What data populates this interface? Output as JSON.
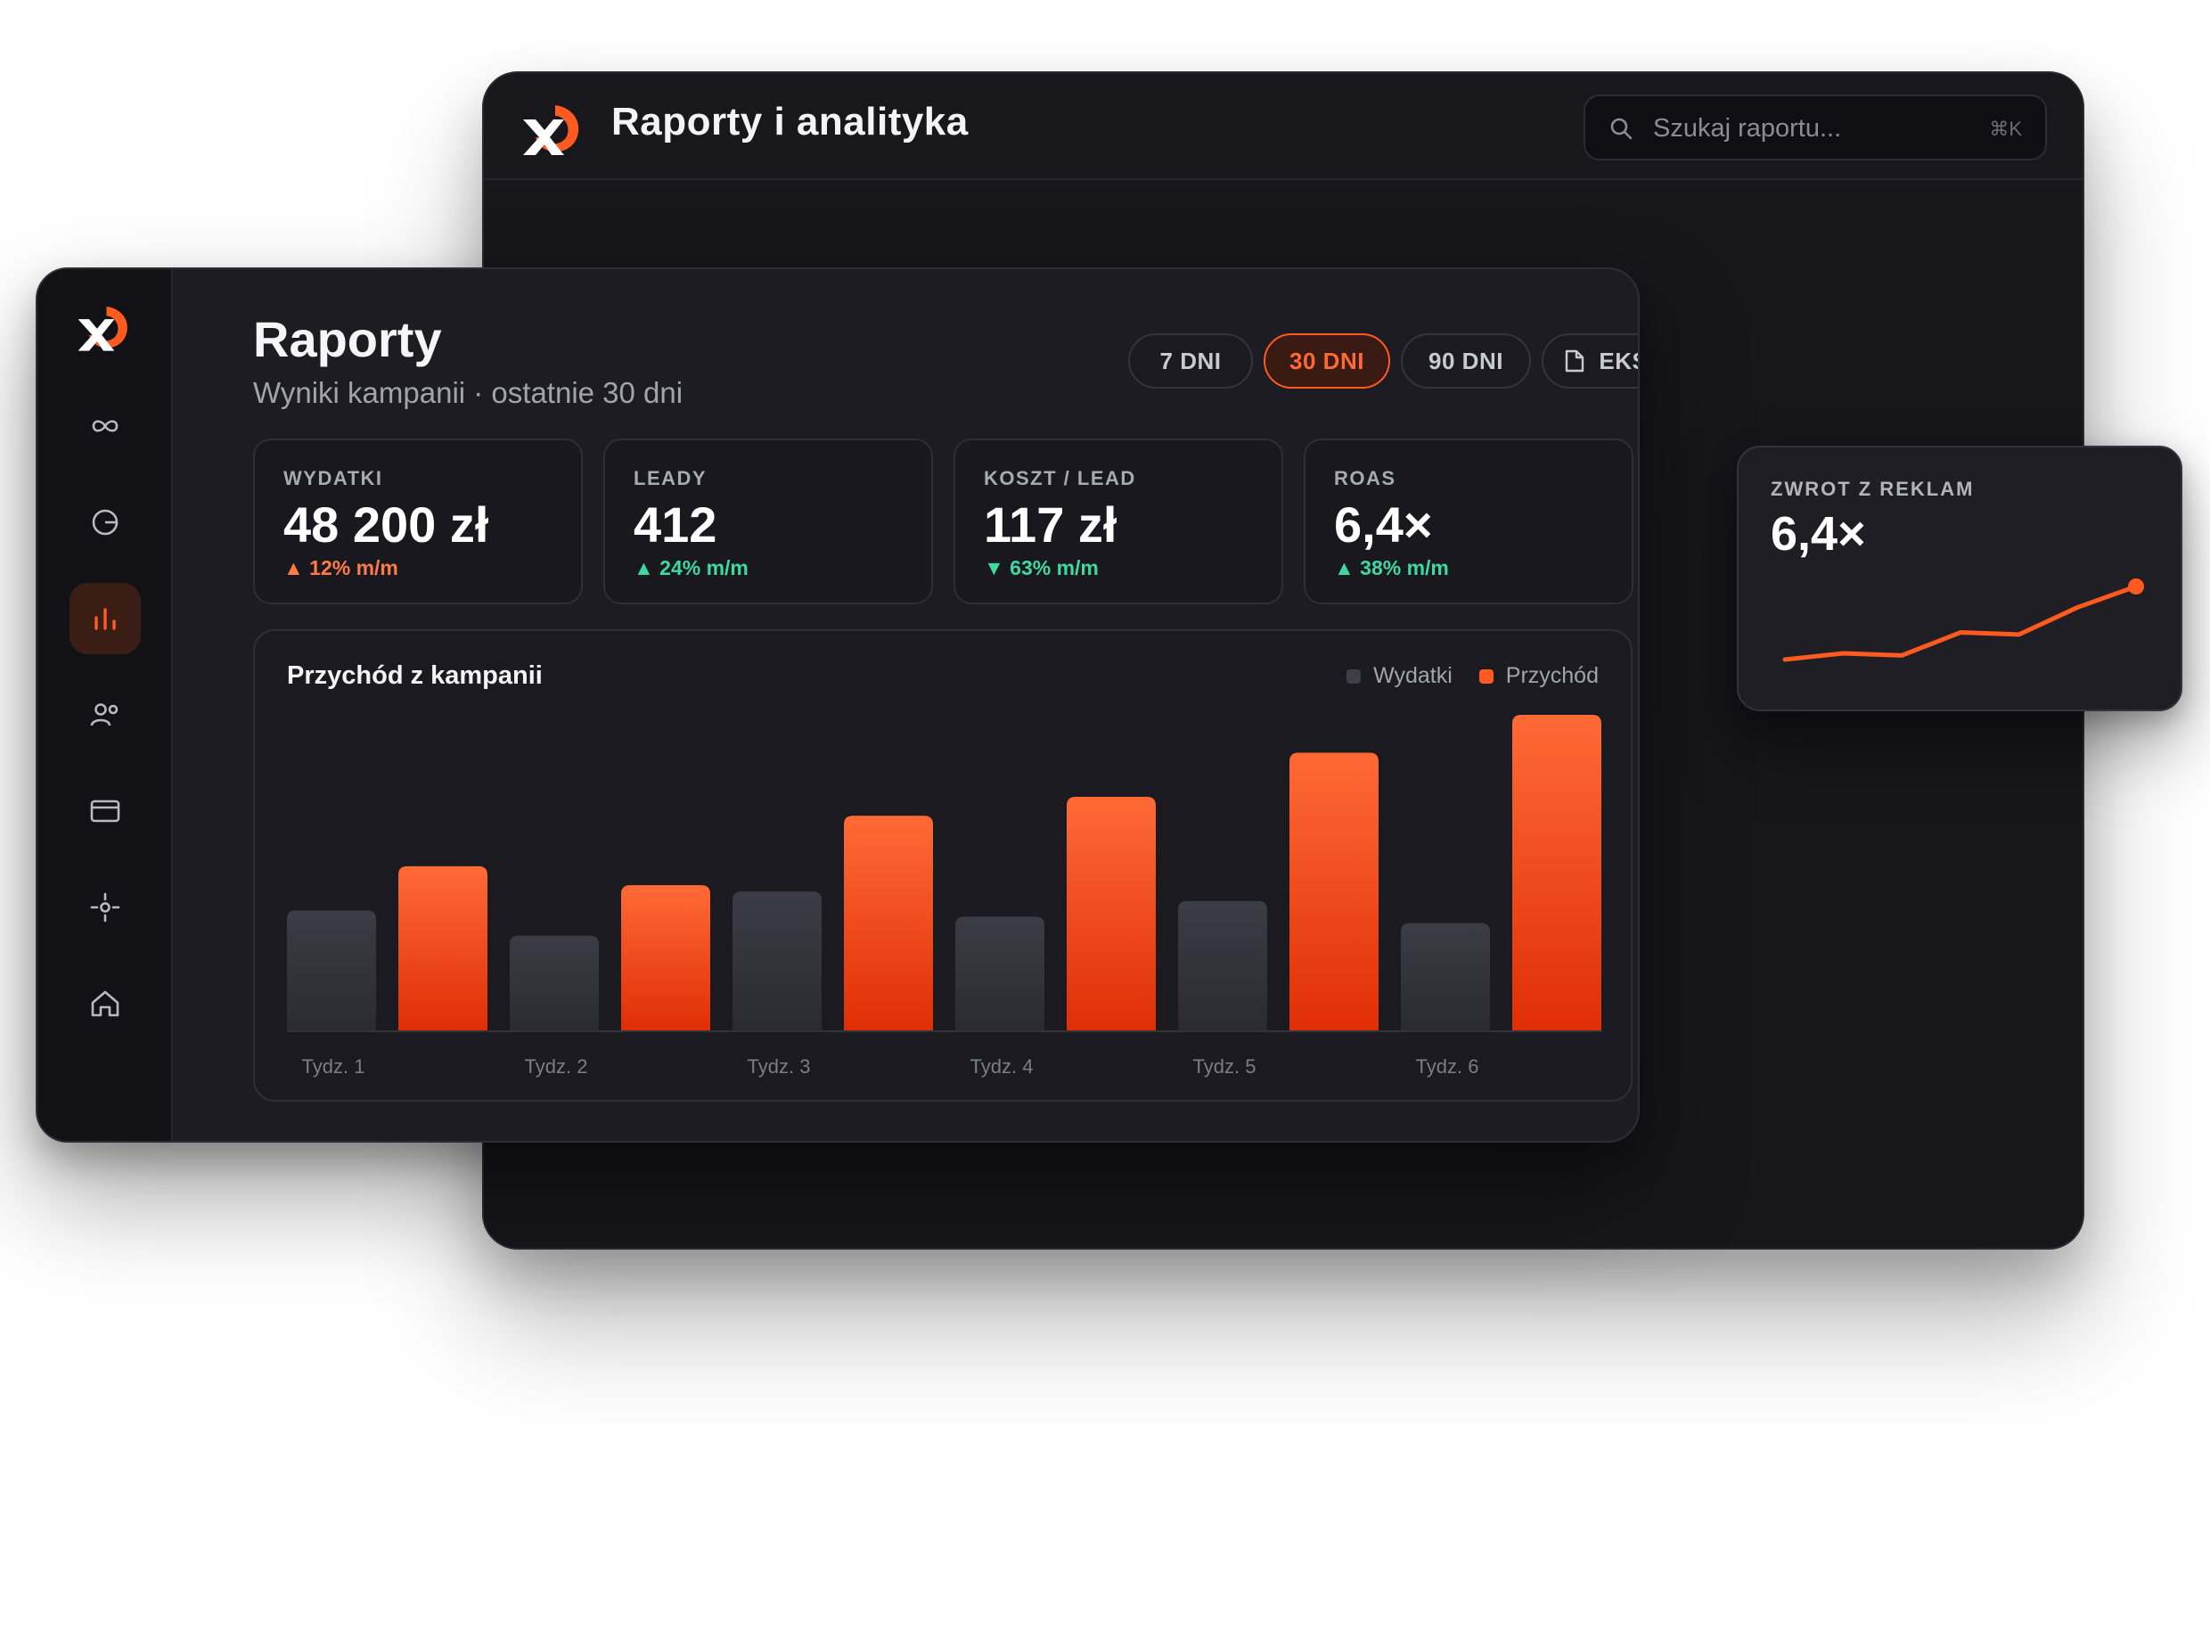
{
  "back_window": {
    "title": "Raporty i analityka",
    "search": {
      "placeholder": "Szukaj raportu...",
      "shortcut": "⌘K"
    }
  },
  "sidebar": {
    "items": [
      {
        "icon": "infinity-icon"
      },
      {
        "icon": "pie-chart-icon"
      },
      {
        "icon": "bar-chart-icon",
        "active": true
      },
      {
        "icon": "users-icon"
      },
      {
        "icon": "credit-card-icon"
      },
      {
        "icon": "target-icon"
      },
      {
        "icon": "home-icon"
      }
    ]
  },
  "header": {
    "title": "Raporty",
    "subtitle": "Wyniki kampanii · ostatnie 30 dni"
  },
  "range": {
    "buttons": [
      {
        "label": "7 DNI",
        "active": false
      },
      {
        "label": "30 DNI",
        "active": true
      },
      {
        "label": "90 DNI",
        "active": false
      }
    ],
    "export_label": "EKSPORT"
  },
  "kpis": [
    {
      "label": "WYDATKI",
      "value": "48 200 zł",
      "delta": "▲ 12% m/m",
      "tone": "orange"
    },
    {
      "label": "LEADY",
      "value": "412",
      "delta": "▲ 24% m/m",
      "tone": "green"
    },
    {
      "label": "KOSZT / LEAD",
      "value": "117 zł",
      "delta": "▼ 63% m/m",
      "tone": "green"
    },
    {
      "label": "ROAS",
      "value": "6,4×",
      "delta": "▲ 38% m/m",
      "tone": "green"
    }
  ],
  "chart_data": {
    "type": "bar",
    "title": "Przychód z kampanii",
    "categories": [
      "Tydz. 1",
      "Tydz. 2",
      "Tydz. 3",
      "Tydz. 4",
      "Tydz. 5",
      "Tydz. 6"
    ],
    "series": [
      {
        "name": "Wydatki",
        "color": "#3a3a44",
        "values": [
          38,
          30,
          44,
          36,
          41,
          34
        ]
      },
      {
        "name": "Przychód",
        "color": "#ff5a1f",
        "values": [
          52,
          46,
          68,
          74,
          88,
          100
        ]
      }
    ],
    "ylim": [
      0,
      100
    ],
    "grid": false,
    "legend": "top-right"
  },
  "roas_card": {
    "label": "ZWROT Z REKLAM",
    "value": "6,4×",
    "sparkline": {
      "type": "line",
      "color": "#ff5a1f",
      "values": [
        1.0,
        1.6,
        1.4,
        3.6,
        3.4,
        6.0,
        8.0
      ]
    }
  }
}
